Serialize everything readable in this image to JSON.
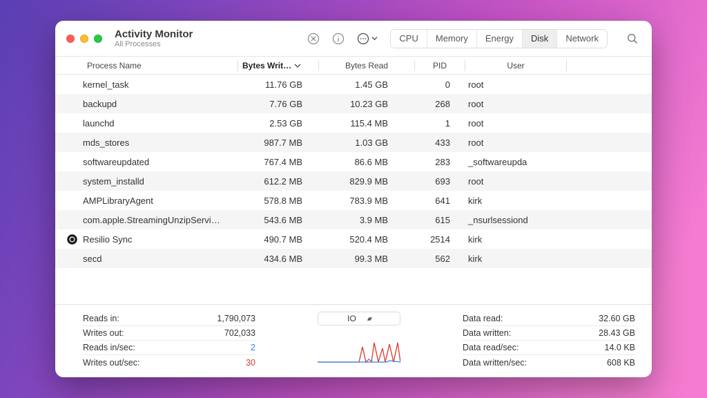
{
  "window": {
    "title": "Activity Monitor",
    "subtitle": "All Processes"
  },
  "tabs": [
    {
      "label": "CPU",
      "active": false
    },
    {
      "label": "Memory",
      "active": false
    },
    {
      "label": "Energy",
      "active": false
    },
    {
      "label": "Disk",
      "active": true
    },
    {
      "label": "Network",
      "active": false
    }
  ],
  "columns": {
    "process_name": "Process Name",
    "bytes_written": "Bytes Writ…",
    "bytes_read": "Bytes Read",
    "pid": "PID",
    "user": "User",
    "sorted_by": "bytes_written",
    "sort_dir": "desc"
  },
  "rows": [
    {
      "icon": null,
      "name": "kernel_task",
      "bytes_written": "11.76 GB",
      "bytes_read": "1.45 GB",
      "pid": "0",
      "user": "root"
    },
    {
      "icon": null,
      "name": "backupd",
      "bytes_written": "7.76 GB",
      "bytes_read": "10.23 GB",
      "pid": "268",
      "user": "root"
    },
    {
      "icon": null,
      "name": "launchd",
      "bytes_written": "2.53 GB",
      "bytes_read": "115.4 MB",
      "pid": "1",
      "user": "root"
    },
    {
      "icon": null,
      "name": "mds_stores",
      "bytes_written": "987.7 MB",
      "bytes_read": "1.03 GB",
      "pid": "433",
      "user": "root"
    },
    {
      "icon": null,
      "name": "softwareupdated",
      "bytes_written": "767.4 MB",
      "bytes_read": "86.6 MB",
      "pid": "283",
      "user": "_softwareupda"
    },
    {
      "icon": null,
      "name": "system_installd",
      "bytes_written": "612.2 MB",
      "bytes_read": "829.9 MB",
      "pid": "693",
      "user": "root"
    },
    {
      "icon": null,
      "name": "AMPLibraryAgent",
      "bytes_written": "578.8 MB",
      "bytes_read": "783.9 MB",
      "pid": "641",
      "user": "kirk"
    },
    {
      "icon": null,
      "name": "com.apple.StreamingUnzipServi…",
      "bytes_written": "543.6 MB",
      "bytes_read": "3.9 MB",
      "pid": "615",
      "user": "_nsurlsessiond"
    },
    {
      "icon": "resilio",
      "name": "Resilio Sync",
      "bytes_written": "490.7 MB",
      "bytes_read": "520.4 MB",
      "pid": "2514",
      "user": "kirk"
    },
    {
      "icon": null,
      "name": "secd",
      "bytes_written": "434.6 MB",
      "bytes_read": "99.3 MB",
      "pid": "562",
      "user": "kirk"
    }
  ],
  "footer": {
    "io_selector_label": "IO",
    "left": [
      {
        "label": "Reads in:",
        "value": "1,790,073",
        "color": null
      },
      {
        "label": "Writes out:",
        "value": "702,033",
        "color": null
      },
      {
        "label": "Reads in/sec:",
        "value": "2",
        "color": "blue"
      },
      {
        "label": "Writes out/sec:",
        "value": "30",
        "color": "red"
      }
    ],
    "right": [
      {
        "label": "Data read:",
        "value": "32.60 GB",
        "color": null
      },
      {
        "label": "Data written:",
        "value": "28.43 GB",
        "color": null
      },
      {
        "label": "Data read/sec:",
        "value": "14.0 KB",
        "color": null
      },
      {
        "label": "Data written/sec:",
        "value": "608 KB",
        "color": null
      }
    ],
    "sparkline": {
      "color_read": "#2f7ff0",
      "color_write": "#d83a2b",
      "background": "#ffffff"
    }
  },
  "colors": {
    "window_bg": "#ffffff",
    "row_alt_bg": "#f5f5f6",
    "divider": "#e5e5e5",
    "text_primary": "#333333",
    "text_secondary": "#8a8a8a",
    "tab_active_bg": "#eeeeee"
  }
}
